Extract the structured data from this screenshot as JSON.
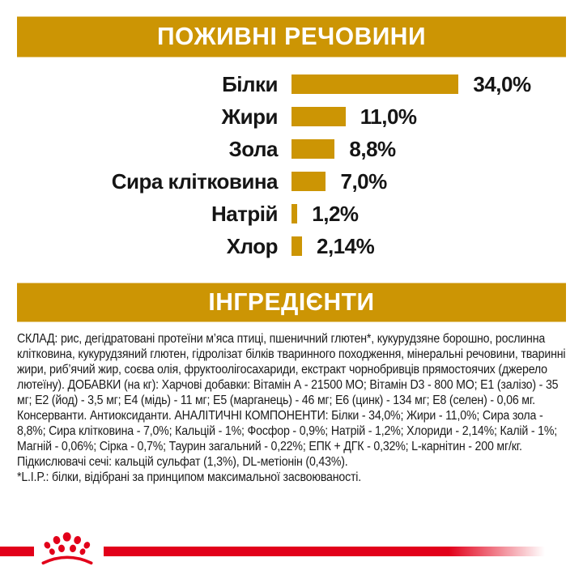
{
  "title_bars": {
    "nutrients": "ПОЖИВНІ РЕЧОВИНИ",
    "ingredients": "ІНГРЕДІЄНТИ"
  },
  "colors": {
    "gold": "#CC9504",
    "red": "#E2001A",
    "header_text": "#FFFFFF",
    "body_text": "#1A1A1A"
  },
  "chart_data": {
    "type": "bar",
    "orientation": "horizontal",
    "title": "ПОЖИВНІ РЕЧОВИНИ",
    "categories": [
      "Білки",
      "Жири",
      "Зола",
      "Сира клітковина",
      "Натрій",
      "Хлор"
    ],
    "values": [
      34.0,
      11.0,
      8.8,
      7.0,
      1.2,
      2.14
    ],
    "value_labels": [
      "34,0%",
      "11,0%",
      "8,8%",
      "7,0%",
      "1,2%",
      "2,14%"
    ],
    "unit": "%",
    "xlim": [
      0,
      34
    ],
    "bar_color": "#CC9504",
    "grid": false,
    "legend": false
  },
  "ingredients_text": {
    "paragraphs": [
      "СКЛАД: рис, дегідратовані протеїни м’яса птиці, пшеничний глютен*, кукурудзяне борошно, рослинна клітковина, кукурудзяний глютен, гідролізат білків тваринного походження, мінеральні речовини, тваринні жири, риб’ячий жир, соєва олія, фруктоолігосахариди, екстракт чорнобривців прямостоячих (джерело лютеїну). ДОБАВКИ (на кг): Харчові добавки: Вітамін А - 21500 МО; Вітамін D3 - 800 МО; Е1 (залізо) - 35 мг; Е2 (йод) - 3,5 мг; Е4 (мідь) - 11 мг; Е5 (марганець) - 46 мг; Е6 (цинк) - 134 мг; Е8 (селен) - 0,06 мг. Консерванти. Антиоксиданти. АНАЛІТИЧНІ КОМПОНЕНТИ: Білки - 34,0%; Жири - 11,0%; Сира зола - 8,8%; Сира клітковина - 7,0%; Кальцій - 1%; Фосфор - 0,9%; Натрій - 1,2%; Хлориди - 2,14%; Калій - 1%; Магній - 0,06%; Сірка - 0,7%; Таурин загальний - 0,22%; ЕПК + ДГК - 0,32%; L-карнітин - 200 мг/кг.",
      "Підкислювачі сечі: кальцій сульфат (1,3%), DL-метіонін (0,43%).",
      "*L.I.P.: білки, відібрані за принципом максимальної засвоюваності."
    ]
  },
  "footer": {
    "logo_icon": "royal-canin-crown-logo"
  }
}
